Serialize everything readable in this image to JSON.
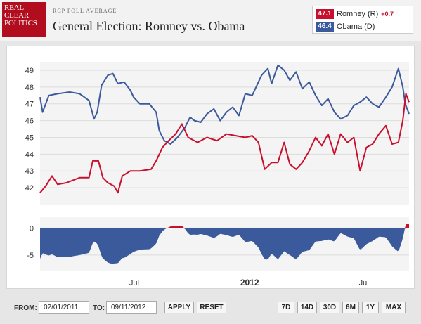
{
  "header": {
    "logo_lines": [
      "REAL",
      "CLEAR",
      "POLITICS"
    ],
    "subtitle": "RCP POLL AVERAGE",
    "title": "General Election: Romney vs. Obama"
  },
  "legend": {
    "romney": {
      "value": "47.1",
      "label": "Romney (R)",
      "change": "+0.7",
      "color": "#c8102e"
    },
    "obama": {
      "value": "46.4",
      "label": "Obama (D)",
      "color": "#3a5a9c"
    }
  },
  "controls": {
    "from_label": "FROM:",
    "from_value": "02/01/2011",
    "to_label": "TO:",
    "to_value": "09/11/2012",
    "apply": "APPLY",
    "reset": "RESET",
    "ranges": [
      "7D",
      "14D",
      "30D",
      "6M",
      "1Y",
      "MAX"
    ]
  },
  "chart_data": {
    "type": "line",
    "x_range": [
      "2011-02-01",
      "2012-09-11"
    ],
    "ylim": [
      41,
      49.5
    ],
    "yticks": [
      42,
      43,
      44,
      45,
      46,
      47,
      48,
      49
    ],
    "xticks": [
      {
        "date": "2011-07-01",
        "label": "Jul",
        "bold": false
      },
      {
        "date": "2012-01-01",
        "label": "2012",
        "bold": true
      },
      {
        "date": "2012-07-01",
        "label": "Jul",
        "bold": false
      }
    ],
    "series": [
      {
        "name": "Obama (D)",
        "color": "#3a5a9c",
        "points": [
          [
            "2011-02-01",
            47.4
          ],
          [
            "2011-02-05",
            46.5
          ],
          [
            "2011-02-15",
            47.5
          ],
          [
            "2011-03-01",
            47.6
          ],
          [
            "2011-03-20",
            47.7
          ],
          [
            "2011-04-05",
            47.6
          ],
          [
            "2011-04-20",
            47.2
          ],
          [
            "2011-04-28",
            46.1
          ],
          [
            "2011-05-03",
            46.5
          ],
          [
            "2011-05-10",
            48.1
          ],
          [
            "2011-05-20",
            48.7
          ],
          [
            "2011-05-28",
            48.8
          ],
          [
            "2011-06-05",
            48.2
          ],
          [
            "2011-06-15",
            48.3
          ],
          [
            "2011-06-25",
            47.8
          ],
          [
            "2011-06-30",
            47.4
          ],
          [
            "2011-07-10",
            47.0
          ],
          [
            "2011-07-25",
            47.0
          ],
          [
            "2011-08-05",
            46.5
          ],
          [
            "2011-08-10",
            45.4
          ],
          [
            "2011-08-18",
            44.8
          ],
          [
            "2011-08-28",
            44.6
          ],
          [
            "2011-09-08",
            45.0
          ],
          [
            "2011-09-20",
            45.6
          ],
          [
            "2011-09-28",
            46.2
          ],
          [
            "2011-10-05",
            46.0
          ],
          [
            "2011-10-15",
            45.9
          ],
          [
            "2011-10-25",
            46.4
          ],
          [
            "2011-11-05",
            46.7
          ],
          [
            "2011-11-15",
            46.0
          ],
          [
            "2011-11-25",
            46.5
          ],
          [
            "2011-12-05",
            46.8
          ],
          [
            "2011-12-15",
            46.3
          ],
          [
            "2011-12-25",
            47.6
          ],
          [
            "2012-01-05",
            47.5
          ],
          [
            "2012-01-20",
            48.7
          ],
          [
            "2012-01-30",
            49.1
          ],
          [
            "2012-02-05",
            48.2
          ],
          [
            "2012-02-15",
            49.3
          ],
          [
            "2012-02-25",
            49.0
          ],
          [
            "2012-03-05",
            48.4
          ],
          [
            "2012-03-15",
            48.9
          ],
          [
            "2012-03-25",
            47.9
          ],
          [
            "2012-04-05",
            48.3
          ],
          [
            "2012-04-15",
            47.5
          ],
          [
            "2012-04-25",
            46.9
          ],
          [
            "2012-05-05",
            47.3
          ],
          [
            "2012-05-15",
            46.5
          ],
          [
            "2012-05-25",
            46.1
          ],
          [
            "2012-06-05",
            46.3
          ],
          [
            "2012-06-15",
            46.9
          ],
          [
            "2012-06-25",
            47.1
          ],
          [
            "2012-07-05",
            47.4
          ],
          [
            "2012-07-15",
            47.0
          ],
          [
            "2012-07-25",
            46.8
          ],
          [
            "2012-08-05",
            47.4
          ],
          [
            "2012-08-15",
            48.0
          ],
          [
            "2012-08-25",
            49.1
          ],
          [
            "2012-09-01",
            48.0
          ],
          [
            "2012-09-05",
            47.0
          ],
          [
            "2012-09-11",
            46.4
          ]
        ]
      },
      {
        "name": "Romney (R)",
        "color": "#c8102e",
        "points": [
          [
            "2011-02-01",
            41.7
          ],
          [
            "2011-02-10",
            42.1
          ],
          [
            "2011-02-20",
            42.7
          ],
          [
            "2011-03-01",
            42.2
          ],
          [
            "2011-03-15",
            42.3
          ],
          [
            "2011-04-05",
            42.6
          ],
          [
            "2011-04-20",
            42.6
          ],
          [
            "2011-04-26",
            43.6
          ],
          [
            "2011-05-05",
            43.6
          ],
          [
            "2011-05-12",
            42.6
          ],
          [
            "2011-05-20",
            42.3
          ],
          [
            "2011-05-30",
            42.1
          ],
          [
            "2011-06-05",
            41.7
          ],
          [
            "2011-06-12",
            42.7
          ],
          [
            "2011-06-25",
            43.0
          ],
          [
            "2011-07-10",
            43.0
          ],
          [
            "2011-07-28",
            43.1
          ],
          [
            "2011-08-05",
            43.6
          ],
          [
            "2011-08-15",
            44.4
          ],
          [
            "2011-08-25",
            44.8
          ],
          [
            "2011-09-05",
            45.2
          ],
          [
            "2011-09-15",
            45.8
          ],
          [
            "2011-09-25",
            45.0
          ],
          [
            "2011-10-10",
            44.7
          ],
          [
            "2011-10-25",
            45.0
          ],
          [
            "2011-11-10",
            44.8
          ],
          [
            "2011-11-25",
            45.2
          ],
          [
            "2011-12-10",
            45.1
          ],
          [
            "2011-12-25",
            45.0
          ],
          [
            "2012-01-05",
            45.1
          ],
          [
            "2012-01-15",
            44.7
          ],
          [
            "2012-01-25",
            43.1
          ],
          [
            "2012-02-05",
            43.5
          ],
          [
            "2012-02-15",
            43.5
          ],
          [
            "2012-02-25",
            44.7
          ],
          [
            "2012-03-05",
            43.4
          ],
          [
            "2012-03-15",
            43.1
          ],
          [
            "2012-03-25",
            43.5
          ],
          [
            "2012-04-05",
            44.2
          ],
          [
            "2012-04-15",
            45.0
          ],
          [
            "2012-04-25",
            44.5
          ],
          [
            "2012-05-05",
            45.2
          ],
          [
            "2012-05-15",
            44.0
          ],
          [
            "2012-05-25",
            45.2
          ],
          [
            "2012-06-05",
            44.7
          ],
          [
            "2012-06-15",
            45.0
          ],
          [
            "2012-06-25",
            43.0
          ],
          [
            "2012-07-05",
            44.4
          ],
          [
            "2012-07-15",
            44.6
          ],
          [
            "2012-07-25",
            45.2
          ],
          [
            "2012-08-05",
            45.7
          ],
          [
            "2012-08-15",
            44.6
          ],
          [
            "2012-08-25",
            44.7
          ],
          [
            "2012-09-01",
            46.0
          ],
          [
            "2012-09-06",
            47.6
          ],
          [
            "2012-09-11",
            47.1
          ]
        ]
      }
    ],
    "spread": {
      "ylim": [
        -8,
        2
      ],
      "yticks": [
        0,
        -5
      ],
      "color": "#3a5a9c",
      "positive_color": "#c8102e"
    }
  }
}
